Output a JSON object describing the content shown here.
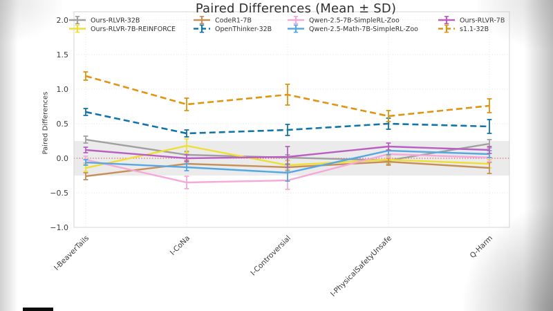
{
  "chart_data": {
    "type": "line",
    "title": "Paired Differences (Mean ± SD)",
    "ylabel": "Paired Differences",
    "xlabel": "",
    "categories": [
      "I-BeaverTails",
      "I-CoNa",
      "I-Controversial",
      "I-PhysicalSafetyUnsafe",
      "Q-Harm"
    ],
    "ylim": [
      -1.0,
      2.0
    ],
    "yticks": [
      2.0,
      1.5,
      1.0,
      0.5,
      0.0,
      -0.5,
      -1.0
    ],
    "ytick_labels": [
      "2.0",
      "1.5",
      "1.0",
      "0.5",
      "0.0",
      "−0.5",
      "−1.0"
    ],
    "grid": true,
    "legend_position": "upper left, 2 rows x 4 columns, no frame",
    "zero_line": {
      "value": 0.0,
      "color": "#cf4444",
      "style": "dotted"
    },
    "shaded_band": {
      "from": -0.25,
      "to": 0.25,
      "color": "#ebebeb"
    },
    "series": [
      {
        "name": "Ours-RLVR-32B",
        "color": "#a0a0a0",
        "dash": "solid",
        "values": [
          0.27,
          0.05,
          0.01,
          -0.03,
          0.21
        ],
        "sd": [
          0.05,
          0.05,
          0.04,
          0.05,
          0.06
        ]
      },
      {
        "name": "Ours-RLVR-7B-REINFORCE",
        "color": "#efdf35",
        "dash": "solid",
        "values": [
          -0.14,
          0.18,
          -0.1,
          -0.02,
          -0.08
        ],
        "sd": [
          0.05,
          0.1,
          0.06,
          0.05,
          0.06
        ]
      },
      {
        "name": "CodeR1-7B",
        "color": "#c78f58",
        "dash": "solid",
        "values": [
          -0.26,
          -0.08,
          -0.13,
          -0.05,
          -0.14
        ],
        "sd": [
          0.05,
          0.05,
          0.05,
          0.05,
          0.08
        ]
      },
      {
        "name": "OpenThinker-32B",
        "color": "#1175a8",
        "dash": "dashed",
        "values": [
          0.67,
          0.36,
          0.41,
          0.5,
          0.46
        ],
        "sd": [
          0.05,
          0.05,
          0.08,
          0.08,
          0.1
        ]
      },
      {
        "name": "Qwen-2.5-7B-SimpleRL-Zoo",
        "color": "#f6a9d6",
        "dash": "solid",
        "values": [
          -0.02,
          -0.35,
          -0.32,
          0.06,
          0.01
        ],
        "sd": [
          0.05,
          0.09,
          0.13,
          0.05,
          0.06
        ]
      },
      {
        "name": "Qwen-2.5-Math-7B-SimpleRL-Zoo",
        "color": "#55a8e2",
        "dash": "solid",
        "values": [
          -0.06,
          -0.13,
          -0.21,
          0.11,
          0.06
        ],
        "sd": [
          0.04,
          0.05,
          0.12,
          0.06,
          0.05
        ]
      },
      {
        "name": "Ours-RLVR-7B",
        "color": "#b95fc2",
        "dash": "solid",
        "values": [
          0.12,
          0.0,
          0.02,
          0.17,
          0.12
        ],
        "sd": [
          0.04,
          0.05,
          0.15,
          0.05,
          0.05
        ]
      },
      {
        "name": "s1.1-32B",
        "color": "#e09410",
        "dash": "dashed",
        "values": [
          1.19,
          0.78,
          0.92,
          0.61,
          0.76
        ],
        "sd": [
          0.06,
          0.09,
          0.15,
          0.08,
          0.1
        ]
      }
    ],
    "legend_rows": [
      [
        "Ours-RLVR-32B",
        "CodeR1-7B",
        "Qwen-2.5-7B-SimpleRL-Zoo",
        "Ours-RLVR-7B"
      ],
      [
        "Ours-RLVR-7B-REINFORCE",
        "OpenThinker-32B",
        "Qwen-2.5-Math-7B-SimpleRL-Zoo",
        "s1.1-32B"
      ]
    ]
  }
}
